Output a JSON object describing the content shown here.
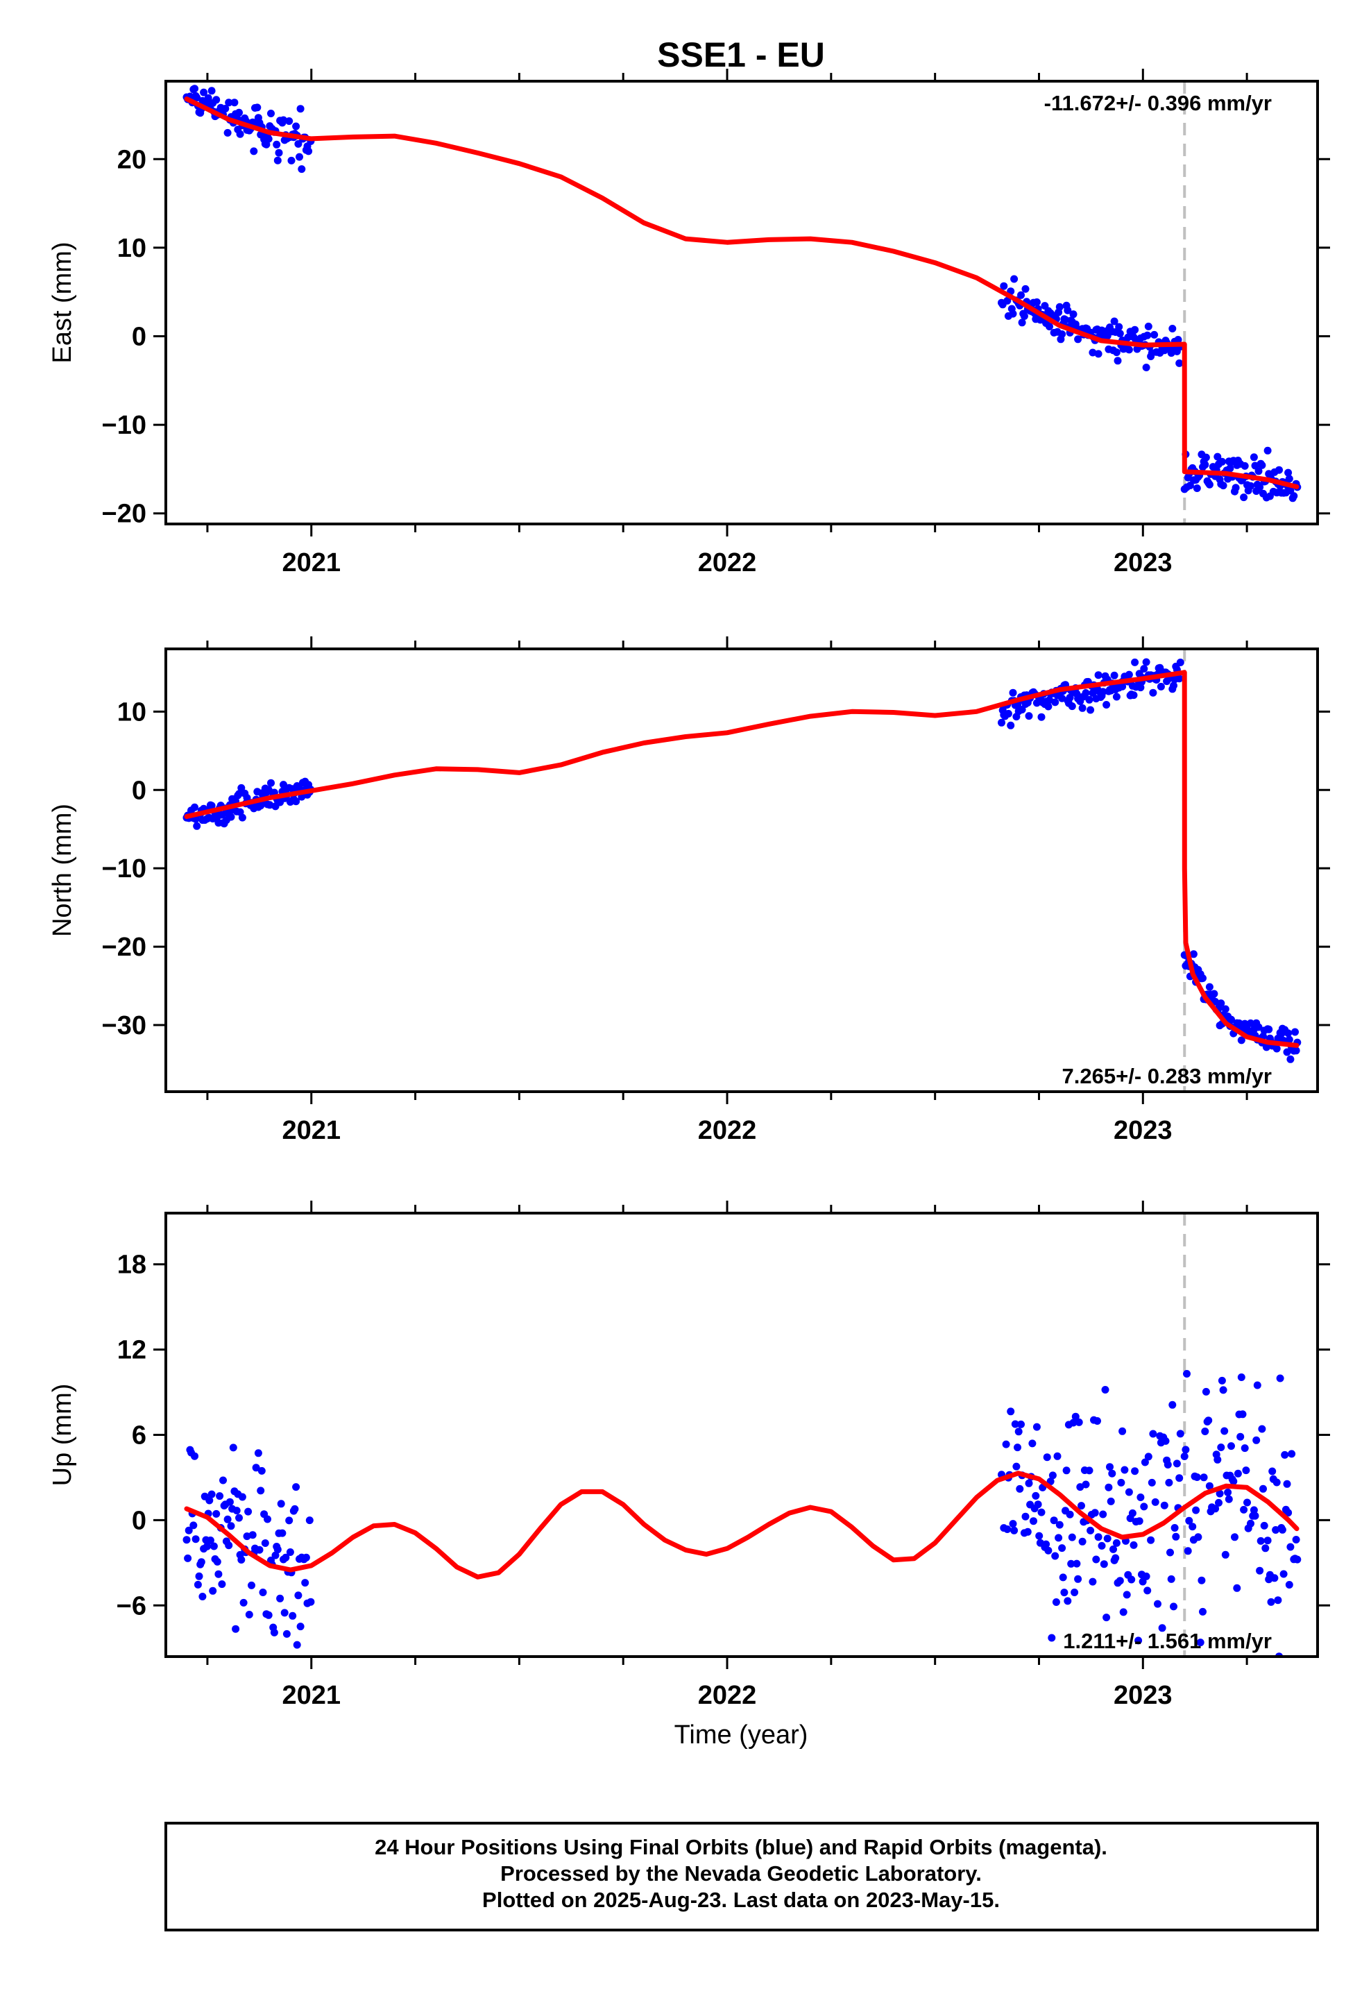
{
  "title": "SSE1 - EU",
  "xlabel": "Time (year)",
  "footer": {
    "line1": "24 Hour Positions Using Final Orbits (blue) and Rapid Orbits (magenta).",
    "line2": "Processed by the Nevada Geodetic Laboratory.",
    "line3": "Plotted on 2025-Aug-23. Last data on 2023-May-15."
  },
  "colors": {
    "data": "#0000ff",
    "model": "#ff0000",
    "event": "#c0c0c0",
    "frame": "#000000"
  },
  "chart_data": [
    {
      "type": "scatter",
      "ylabel": "East (mm)",
      "rate_label": "-11.672+/- 0.396 mm/yr",
      "rate_position": "top-right",
      "xlim": [
        2020.65,
        2023.42
      ],
      "ylim": [
        -21.2,
        28.8
      ],
      "xticks": [
        2021,
        2022,
        2023
      ],
      "yticks": [
        -20,
        -10,
        0,
        10,
        20
      ],
      "event_lines": [
        2023.1
      ],
      "data_segments": [
        {
          "x0": 2020.7,
          "x1": 2021.0,
          "y": [
            27.0,
            25.0,
            23.0,
            22.2
          ],
          "noise": 1.0
        },
        {
          "x0": 2022.66,
          "x1": 2023.09,
          "y": [
            4.5,
            1.5,
            -0.8,
            -1.2
          ],
          "noise": 1.0
        },
        {
          "x0": 2023.1,
          "x1": 2023.37,
          "y": [
            -15.5,
            -15.5,
            -16.3,
            -17.2
          ],
          "noise": 1.2
        }
      ],
      "model": [
        [
          2020.7,
          26.8
        ],
        [
          2020.8,
          24.5
        ],
        [
          2020.9,
          23.0
        ],
        [
          2021.0,
          22.3
        ],
        [
          2021.1,
          22.5
        ],
        [
          2021.2,
          22.6
        ],
        [
          2021.3,
          21.8
        ],
        [
          2021.4,
          20.7
        ],
        [
          2021.5,
          19.5
        ],
        [
          2021.6,
          18.0
        ],
        [
          2021.7,
          15.6
        ],
        [
          2021.8,
          12.8
        ],
        [
          2021.9,
          11.0
        ],
        [
          2022.0,
          10.6
        ],
        [
          2022.1,
          10.9
        ],
        [
          2022.2,
          11.0
        ],
        [
          2022.3,
          10.6
        ],
        [
          2022.4,
          9.6
        ],
        [
          2022.5,
          8.3
        ],
        [
          2022.6,
          6.6
        ],
        [
          2022.7,
          4.0
        ],
        [
          2022.8,
          1.2
        ],
        [
          2022.9,
          -0.5
        ],
        [
          2023.0,
          -1.0
        ],
        [
          2023.0999,
          -0.9
        ],
        [
          2023.1001,
          -15.3
        ],
        [
          2023.2,
          -15.5
        ],
        [
          2023.3,
          -16.2
        ],
        [
          2023.37,
          -17.0
        ]
      ]
    },
    {
      "type": "scatter",
      "ylabel": "North (mm)",
      "rate_label": "7.265+/- 0.283 mm/yr",
      "rate_position": "bottom-right",
      "xlim": [
        2020.65,
        2023.42
      ],
      "ylim": [
        -38.5,
        18.0
      ],
      "xticks": [
        2021,
        2022,
        2023
      ],
      "yticks": [
        -30,
        -20,
        -10,
        0,
        10
      ],
      "event_lines": [
        2023.1
      ],
      "data_segments": [
        {
          "x0": 2020.7,
          "x1": 2021.0,
          "y": [
            -3.4,
            -2.4,
            -1.0,
            -0.1
          ],
          "noise": 0.9
        },
        {
          "x0": 2022.66,
          "x1": 2023.09,
          "y": [
            10.8,
            12.0,
            13.5,
            14.8
          ],
          "noise": 1.0
        },
        {
          "x0": 2023.1,
          "x1": 2023.37,
          "y": [
            -21.0,
            -29.0,
            -31.5,
            -32.3
          ],
          "noise": 1.0
        }
      ],
      "model": [
        [
          2020.7,
          -3.4
        ],
        [
          2020.8,
          -2.2
        ],
        [
          2020.9,
          -1.0
        ],
        [
          2021.0,
          -0.1
        ],
        [
          2021.1,
          0.8
        ],
        [
          2021.2,
          1.9
        ],
        [
          2021.3,
          2.7
        ],
        [
          2021.4,
          2.6
        ],
        [
          2021.5,
          2.2
        ],
        [
          2021.6,
          3.2
        ],
        [
          2021.7,
          4.8
        ],
        [
          2021.8,
          6.0
        ],
        [
          2021.9,
          6.8
        ],
        [
          2022.0,
          7.3
        ],
        [
          2022.1,
          8.4
        ],
        [
          2022.2,
          9.4
        ],
        [
          2022.3,
          10.0
        ],
        [
          2022.4,
          9.9
        ],
        [
          2022.5,
          9.5
        ],
        [
          2022.6,
          10.0
        ],
        [
          2022.7,
          11.5
        ],
        [
          2022.8,
          12.8
        ],
        [
          2022.9,
          13.5
        ],
        [
          2023.0,
          14.2
        ],
        [
          2023.0999,
          15.0
        ],
        [
          2023.1001,
          -10.0
        ],
        [
          2023.103,
          -19.5
        ],
        [
          2023.12,
          -23.5
        ],
        [
          2023.15,
          -26.5
        ],
        [
          2023.2,
          -29.8
        ],
        [
          2023.25,
          -31.5
        ],
        [
          2023.3,
          -32.2
        ],
        [
          2023.37,
          -32.6
        ]
      ]
    },
    {
      "type": "scatter",
      "ylabel": "Up (mm)",
      "rate_label": "1.211+/- 1.561 mm/yr",
      "rate_position": "bottom-right",
      "xlim": [
        2020.65,
        2023.42
      ],
      "ylim": [
        -9.6,
        21.6
      ],
      "xticks": [
        2021,
        2022,
        2023
      ],
      "yticks": [
        -6,
        0,
        6,
        12,
        18
      ],
      "event_lines": [
        2023.1
      ],
      "data_segments": [
        {
          "x0": 2020.7,
          "x1": 2021.0,
          "y": [
            0.6,
            -1.2,
            -2.8,
            -3.6
          ],
          "noise": 3.2
        },
        {
          "x0": 2022.66,
          "x1": 2023.09,
          "y": [
            2.8,
            0.5,
            -1.0,
            0.5
          ],
          "noise": 4.2
        },
        {
          "x0": 2023.1,
          "x1": 2023.37,
          "y": [
            1.5,
            2.4,
            1.0,
            -0.8
          ],
          "noise": 4.2
        }
      ],
      "model": [
        [
          2020.7,
          0.8
        ],
        [
          2020.75,
          0.2
        ],
        [
          2020.8,
          -1.0
        ],
        [
          2020.85,
          -2.3
        ],
        [
          2020.9,
          -3.2
        ],
        [
          2020.95,
          -3.5
        ],
        [
          2021.0,
          -3.2
        ],
        [
          2021.05,
          -2.3
        ],
        [
          2021.1,
          -1.2
        ],
        [
          2021.15,
          -0.4
        ],
        [
          2021.2,
          -0.3
        ],
        [
          2021.25,
          -0.9
        ],
        [
          2021.3,
          -2.0
        ],
        [
          2021.35,
          -3.3
        ],
        [
          2021.4,
          -4.0
        ],
        [
          2021.45,
          -3.7
        ],
        [
          2021.5,
          -2.4
        ],
        [
          2021.55,
          -0.6
        ],
        [
          2021.6,
          1.1
        ],
        [
          2021.65,
          2.0
        ],
        [
          2021.7,
          2.0
        ],
        [
          2021.75,
          1.1
        ],
        [
          2021.8,
          -0.3
        ],
        [
          2021.85,
          -1.4
        ],
        [
          2021.9,
          -2.1
        ],
        [
          2021.95,
          -2.4
        ],
        [
          2022.0,
          -2.0
        ],
        [
          2022.05,
          -1.2
        ],
        [
          2022.1,
          -0.3
        ],
        [
          2022.15,
          0.5
        ],
        [
          2022.2,
          0.9
        ],
        [
          2022.25,
          0.6
        ],
        [
          2022.3,
          -0.5
        ],
        [
          2022.35,
          -1.8
        ],
        [
          2022.4,
          -2.8
        ],
        [
          2022.45,
          -2.7
        ],
        [
          2022.5,
          -1.6
        ],
        [
          2022.55,
          0.0
        ],
        [
          2022.6,
          1.6
        ],
        [
          2022.65,
          2.8
        ],
        [
          2022.7,
          3.3
        ],
        [
          2022.75,
          2.9
        ],
        [
          2022.8,
          1.8
        ],
        [
          2022.85,
          0.5
        ],
        [
          2022.9,
          -0.6
        ],
        [
          2022.95,
          -1.2
        ],
        [
          2023.0,
          -1.0
        ],
        [
          2023.05,
          -0.2
        ],
        [
          2023.1,
          0.9
        ],
        [
          2023.15,
          1.9
        ],
        [
          2023.2,
          2.4
        ],
        [
          2023.25,
          2.3
        ],
        [
          2023.3,
          1.3
        ],
        [
          2023.35,
          0.0
        ],
        [
          2023.37,
          -0.6
        ]
      ]
    }
  ]
}
